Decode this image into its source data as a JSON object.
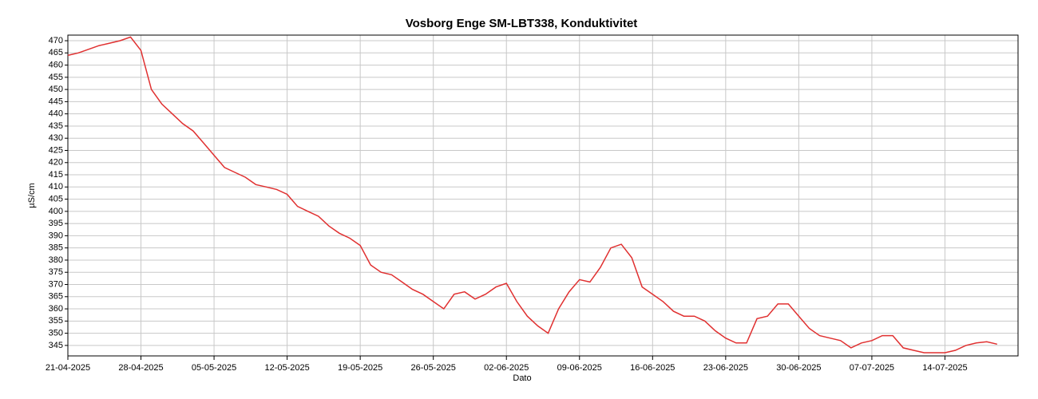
{
  "chart_data": {
    "type": "line",
    "title": "Vosborg Enge SM-LBT338, Konduktivitet",
    "xlabel": "Dato",
    "ylabel": "µS/cm",
    "x": [
      "21-04-2025",
      "22-04-2025",
      "23-04-2025",
      "24-04-2025",
      "25-04-2025",
      "26-04-2025",
      "27-04-2025",
      "28-04-2025",
      "29-04-2025",
      "30-04-2025",
      "01-05-2025",
      "02-05-2025",
      "03-05-2025",
      "04-05-2025",
      "05-05-2025",
      "06-05-2025",
      "07-05-2025",
      "08-05-2025",
      "09-05-2025",
      "10-05-2025",
      "11-05-2025",
      "12-05-2025",
      "13-05-2025",
      "14-05-2025",
      "15-05-2025",
      "16-05-2025",
      "17-05-2025",
      "18-05-2025",
      "19-05-2025",
      "20-05-2025",
      "21-05-2025",
      "22-05-2025",
      "23-05-2025",
      "24-05-2025",
      "25-05-2025",
      "26-05-2025",
      "27-05-2025",
      "28-05-2025",
      "29-05-2025",
      "30-05-2025",
      "31-05-2025",
      "01-06-2025",
      "02-06-2025",
      "03-06-2025",
      "04-06-2025",
      "05-06-2025",
      "06-06-2025",
      "07-06-2025",
      "08-06-2025",
      "09-06-2025",
      "10-06-2025",
      "11-06-2025",
      "12-06-2025",
      "13-06-2025",
      "14-06-2025",
      "15-06-2025",
      "16-06-2025",
      "17-06-2025",
      "18-06-2025",
      "19-06-2025",
      "20-06-2025",
      "21-06-2025",
      "22-06-2025",
      "23-06-2025",
      "24-06-2025",
      "25-06-2025",
      "26-06-2025",
      "27-06-2025",
      "28-06-2025",
      "29-06-2025",
      "30-06-2025",
      "01-07-2025",
      "02-07-2025",
      "03-07-2025",
      "04-07-2025",
      "05-07-2025",
      "06-07-2025",
      "07-07-2025",
      "08-07-2025",
      "09-07-2025",
      "10-07-2025",
      "11-07-2025",
      "12-07-2025",
      "13-07-2025",
      "14-07-2025",
      "15-07-2025",
      "16-07-2025",
      "17-07-2025",
      "18-07-2025",
      "19-07-2025"
    ],
    "series": [
      {
        "name": "Konduktivitet",
        "color": "#e03030",
        "values": [
          464,
          465,
          466.5,
          468,
          469,
          470,
          471.5,
          466,
          450,
          444,
          440,
          436,
          433,
          428,
          423,
          418,
          416,
          414,
          411,
          410,
          409,
          407,
          402,
          400,
          398,
          394,
          391,
          389,
          386,
          378,
          375,
          374,
          371,
          368,
          366,
          363,
          360,
          366,
          367,
          364,
          366,
          369,
          370.5,
          363,
          357,
          353,
          350,
          360,
          367,
          372,
          371,
          377,
          385,
          386.5,
          381,
          369,
          366,
          363,
          359,
          357,
          357,
          355,
          351,
          348,
          346,
          346,
          356,
          357,
          362,
          362,
          357,
          352,
          349,
          348,
          347,
          344,
          346,
          347,
          349,
          349,
          344,
          343,
          342,
          342,
          342,
          343,
          345,
          346,
          346.5,
          345.5
        ]
      }
    ],
    "xlim": [
      "21-04-2025",
      "21-07-2025"
    ],
    "xticks": [
      "21-04-2025",
      "28-04-2025",
      "05-05-2025",
      "12-05-2025",
      "19-05-2025",
      "26-05-2025",
      "02-06-2025",
      "09-06-2025",
      "16-06-2025",
      "23-06-2025",
      "30-06-2025",
      "07-07-2025",
      "14-07-2025"
    ],
    "ylim": [
      340.7,
      472.3
    ],
    "yticks": [
      345,
      350,
      355,
      360,
      365,
      370,
      375,
      380,
      385,
      390,
      395,
      400,
      405,
      410,
      415,
      420,
      425,
      430,
      435,
      440,
      445,
      450,
      455,
      460,
      465,
      470
    ],
    "grid": true
  }
}
